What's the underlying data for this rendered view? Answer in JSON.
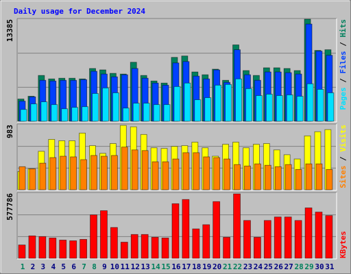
{
  "chart_data": [
    {
      "type": "bar",
      "title": "Daily usage for December 2024",
      "ylim": [
        0,
        13385
      ],
      "yticks": [
        13385
      ],
      "grid": true,
      "legend_separator": " / ",
      "series": [
        {
          "name": "Hits",
          "color": "#00805c",
          "values": [
            2914,
            3278,
            6009,
            5554,
            5645,
            5645,
            5554,
            6920,
            6738,
            6283,
            6191,
            7739,
            6009,
            5281,
            5008,
            8377,
            8559,
            6465,
            6100,
            6829,
            5372,
            10016,
            6647,
            6009,
            7011,
            7011,
            6920,
            6647,
            13385,
            9287,
            9378
          ]
        },
        {
          "name": "Files",
          "color": "#0040ff",
          "values": [
            2640,
            3200,
            5372,
            5281,
            5372,
            5372,
            5463,
            6556,
            6191,
            5827,
            6100,
            6920,
            5645,
            5008,
            4735,
            7648,
            7830,
            5918,
            5554,
            6738,
            5099,
            9378,
            6100,
            5372,
            6465,
            6465,
            6374,
            6191,
            12747,
            9196,
            8650
          ]
        },
        {
          "name": "Pages",
          "color": "#00e0ff",
          "values": [
            1548,
            2276,
            2550,
            2185,
            1639,
            1821,
            1912,
            3642,
            4370,
            3733,
            1730,
            2367,
            2367,
            2185,
            2185,
            4552,
            5008,
            2823,
            3096,
            4735,
            4826,
            5554,
            4279,
            3369,
            3551,
            3369,
            3460,
            3278,
            4917,
            4188,
            3733
          ]
        }
      ]
    },
    {
      "type": "bar",
      "ylim": [
        0,
        983
      ],
      "yticks": [
        983
      ],
      "grid": true,
      "legend_separator": " / ",
      "series": [
        {
          "name": "Visits",
          "color": "#ffff00",
          "values": [
            275,
            317,
            581,
            761,
            740,
            740,
            856,
            666,
            550,
            698,
            972,
            951,
            835,
            634,
            624,
            655,
            666,
            719,
            634,
            507,
            687,
            719,
            634,
            687,
            698,
            602,
            529,
            465,
            814,
            877,
            909
          ]
        },
        {
          "name": "Sites",
          "color": "#ff8000",
          "values": [
            349,
            317,
            402,
            486,
            507,
            497,
            455,
            518,
            507,
            518,
            645,
            602,
            592,
            423,
            423,
            465,
            560,
            560,
            497,
            486,
            465,
            381,
            359,
            391,
            370,
            349,
            381,
            307,
            391,
            391,
            307
          ]
        }
      ]
    },
    {
      "type": "bar",
      "ylim": [
        0,
        577786
      ],
      "yticks": [
        577786
      ],
      "grid": true,
      "categories": [
        "1",
        "2",
        "3",
        "4",
        "5",
        "6",
        "7",
        "8",
        "9",
        "10",
        "11",
        "12",
        "13",
        "14",
        "15",
        "16",
        "17",
        "18",
        "19",
        "20",
        "21",
        "22",
        "23",
        "24",
        "25",
        "26",
        "27",
        "28",
        "29",
        "30",
        "31"
      ],
      "category_colors": [
        "#00805c",
        "#000080",
        "#000080",
        "#000080",
        "#000080",
        "#000080",
        "#00805c",
        "#00805c",
        "#000080",
        "#000080",
        "#000080",
        "#000080",
        "#000080",
        "#00805c",
        "#00805c",
        "#000080",
        "#000080",
        "#000080",
        "#000080",
        "#000080",
        "#00805c",
        "#00805c",
        "#000080",
        "#000080",
        "#000080",
        "#000080",
        "#000080",
        "#00805c",
        "#00805c",
        "#000080",
        "#000080"
      ],
      "series": [
        {
          "name": "KBytes",
          "color": "#ff0000",
          "values": [
            118000,
            198800,
            192600,
            180200,
            161500,
            155300,
            167800,
            385200,
            422500,
            273400,
            142900,
            211200,
            211200,
            186400,
            180200,
            484600,
            521900,
            261000,
            298200,
            503300,
            186400,
            571600,
            335500,
            186400,
            335500,
            366600,
            366600,
            335500,
            447300,
            410100,
            379000
          ]
        }
      ]
    }
  ]
}
